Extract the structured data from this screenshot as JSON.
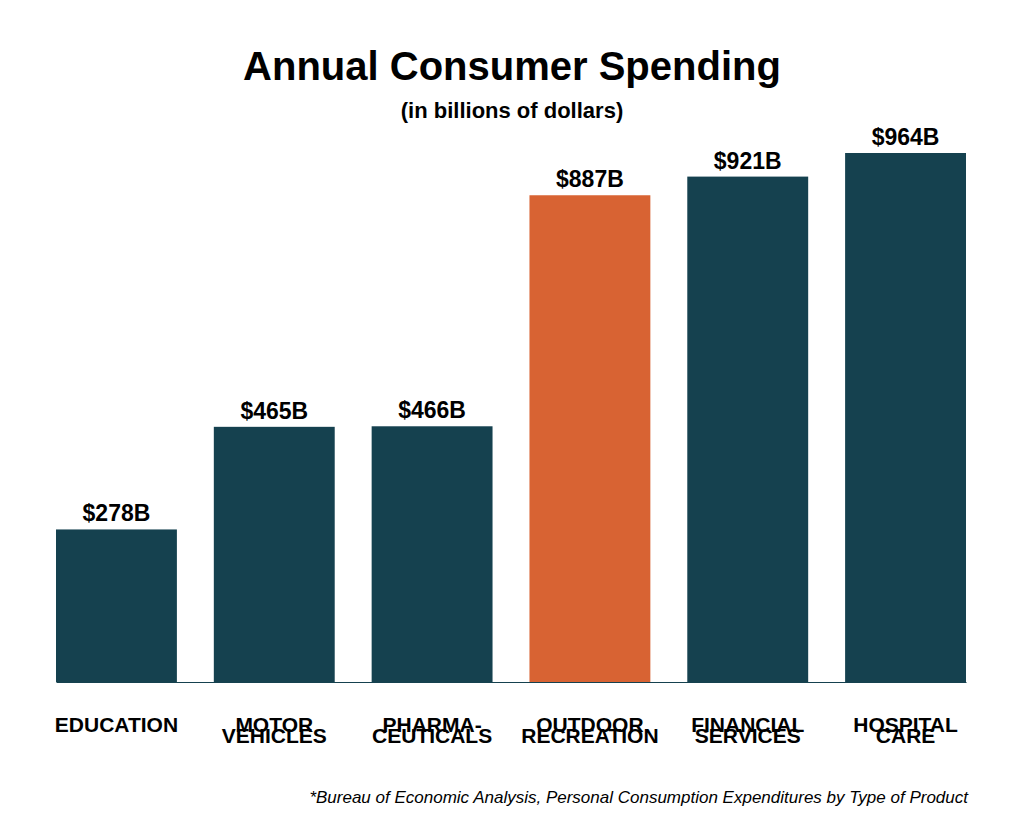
{
  "chart_data": {
    "type": "bar",
    "title": "Annual Consumer Spending",
    "subtitle": "(in billions of dollars)",
    "categories": [
      "EDUCATION",
      "MOTOR\nVEHICLES",
      "PHARMA-\nCEUTICALS",
      "OUTDOOR\nRECREATION",
      "FINANCIAL\nSERVICES",
      "HOSPITAL\nCARE"
    ],
    "values": [
      278,
      465,
      466,
      887,
      921,
      964
    ],
    "value_labels": [
      "$278B",
      "$465B",
      "$466B",
      "$887B",
      "$921B",
      "$964B"
    ],
    "colors": [
      "#15414f",
      "#15414f",
      "#15414f",
      "#d86333",
      "#15414f",
      "#15414f"
    ],
    "data_labels": true,
    "tick_labels": "x",
    "source": "*Bureau of Economic Analysis, Personal Consumption Expenditures by Type of Product"
  }
}
